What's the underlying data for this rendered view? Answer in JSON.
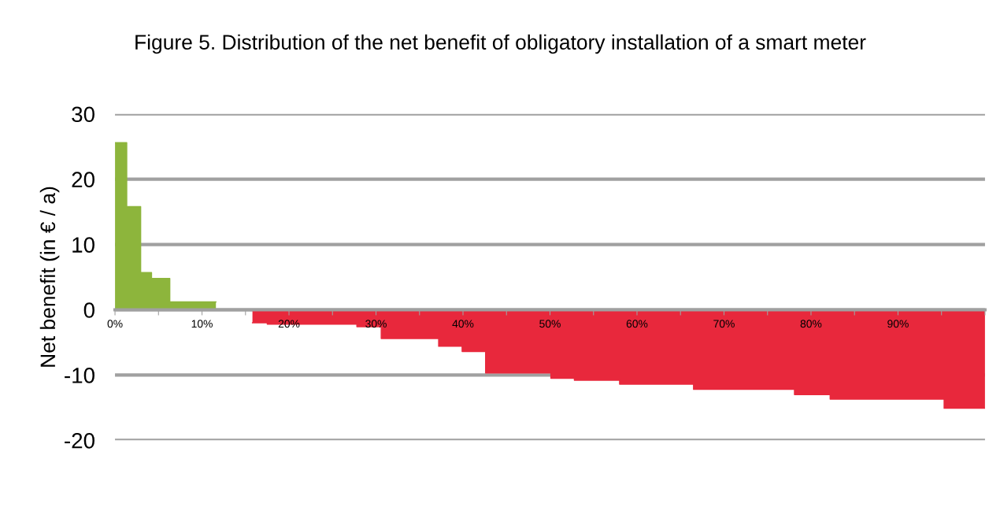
{
  "chart_data": {
    "type": "area",
    "title": "Figure 5. Distribution of the net benefit of obligatory installation of a smart meter",
    "ylabel": "Net benefit (in € / a)",
    "series": [
      {
        "color": "#8db53c",
        "x": [
          0,
          1.35,
          1.35,
          2.95,
          2.95,
          4.2,
          4.2,
          6.3,
          6.3,
          11.6
        ],
        "values": [
          25.6,
          25.6,
          15.8,
          15.8,
          5.7,
          5.7,
          4.8,
          4.8,
          1.2,
          1.2
        ]
      },
      {
        "color": "#e8283c",
        "x": [
          15.8,
          17.5,
          17.5,
          27.8,
          27.8,
          30.6,
          30.6,
          37.2,
          37.2,
          39.9,
          39.9,
          42.6,
          42.6,
          50.1,
          50.1,
          52.8,
          52.8,
          58.0,
          58.0,
          66.5,
          66.5,
          78.1,
          78.1,
          82.2,
          82.2,
          95.3,
          95.3,
          100
        ],
        "values": [
          -2.0,
          -2.0,
          -2.2,
          -2.2,
          -2.6,
          -2.6,
          -4.4,
          -4.4,
          -5.6,
          -5.6,
          -6.4,
          -6.4,
          -9.7,
          -9.7,
          -10.5,
          -10.5,
          -10.8,
          -10.8,
          -11.4,
          -11.4,
          -12.2,
          -12.2,
          -13.0,
          -13.0,
          -13.7,
          -13.7,
          -15.1,
          -15.1
        ]
      }
    ],
    "xlim": [
      0,
      100
    ],
    "xticks": [
      {
        "value": 0,
        "label": "0%"
      },
      {
        "value": 5,
        "label": null
      },
      {
        "value": 10,
        "label": "10%"
      },
      {
        "value": 15,
        "label": null
      },
      {
        "value": 20,
        "label": "20%"
      },
      {
        "value": 25,
        "label": null
      },
      {
        "value": 30,
        "label": "30%"
      },
      {
        "value": 35,
        "label": null
      },
      {
        "value": 40,
        "label": "40%"
      },
      {
        "value": 45,
        "label": null
      },
      {
        "value": 50,
        "label": "50%"
      },
      {
        "value": 55,
        "label": null
      },
      {
        "value": 60,
        "label": "60%"
      },
      {
        "value": 65,
        "label": null
      },
      {
        "value": 70,
        "label": "70%"
      },
      {
        "value": 75,
        "label": null
      },
      {
        "value": 80,
        "label": "80%"
      },
      {
        "value": 85,
        "label": null
      },
      {
        "value": 90,
        "label": "90%"
      },
      {
        "value": 95,
        "label": null
      },
      {
        "value": 100,
        "label": null
      }
    ],
    "ylim": [
      -20,
      30
    ],
    "yticks": [
      -20,
      -10,
      0,
      10,
      20,
      30
    ],
    "grid": "y"
  }
}
